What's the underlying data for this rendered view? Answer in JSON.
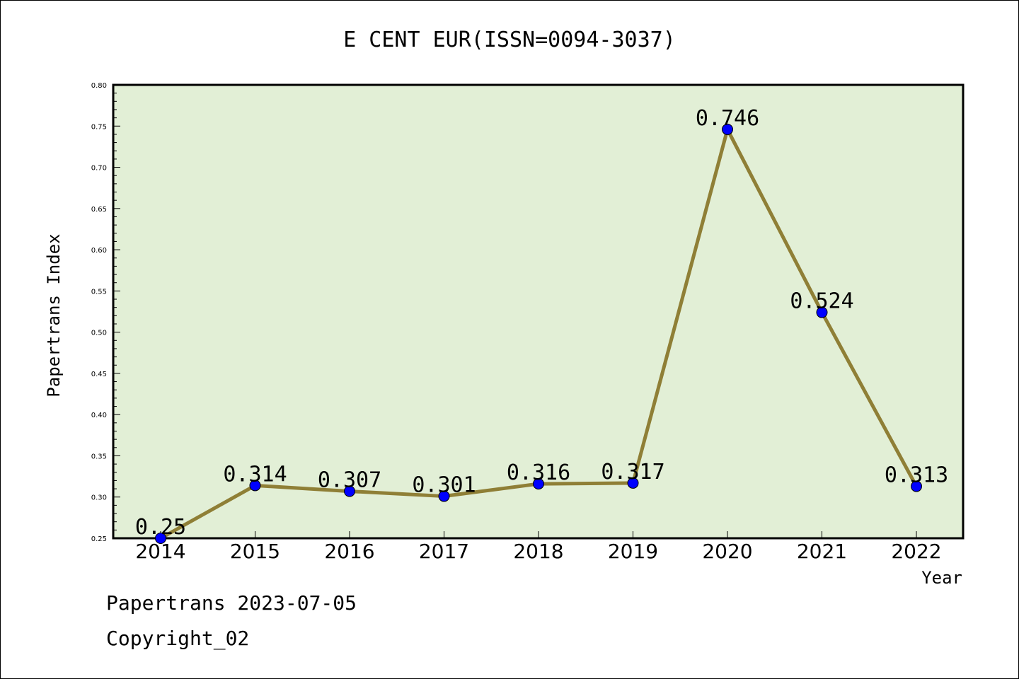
{
  "chart_data": {
    "type": "line",
    "title": "E CENT EUR(ISSN=0094-3037)",
    "xlabel": "Year",
    "ylabel": "Papertrans Index",
    "categories": [
      "2014",
      "2015",
      "2016",
      "2017",
      "2018",
      "2019",
      "2020",
      "2021",
      "2022"
    ],
    "series": [
      {
        "values": [
          0.25,
          0.314,
          0.307,
          0.301,
          0.316,
          0.317,
          0.746,
          0.524,
          0.313
        ],
        "data_labels": [
          "0.25",
          "0.314",
          "0.307",
          "0.301",
          "0.316",
          "0.317",
          "0.746",
          "0.524",
          "0.313"
        ]
      }
    ],
    "ylim": [
      0.25,
      0.8
    ],
    "yticks": [
      "0.25",
      "0.30",
      "0.35",
      "0.40",
      "0.45",
      "0.50",
      "0.55",
      "0.60",
      "0.65",
      "0.70",
      "0.75",
      "0.80"
    ],
    "grid": false,
    "colors": {
      "plot_background": "#e2efd6",
      "line": "#8f7f36",
      "marker": "#0000ff"
    }
  },
  "footer": {
    "line1": "Papertrans 2023-07-05",
    "line2": "Copyright_02"
  }
}
